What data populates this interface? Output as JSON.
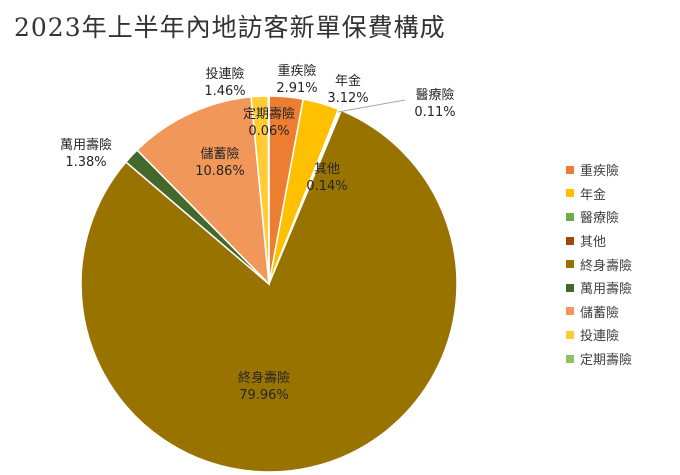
{
  "chart_data": {
    "type": "pie",
    "title": "2023年上半年內地訪客新單保費構成",
    "slices": [
      {
        "name": "重疾險",
        "value": 2.91,
        "label": "2.91%",
        "color": "#ED7D31"
      },
      {
        "name": "年金",
        "value": 3.12,
        "label": "3.12%",
        "color": "#FFC000"
      },
      {
        "name": "醫療險",
        "value": 0.11,
        "label": "0.11%",
        "color": "#70AD47"
      },
      {
        "name": "其他",
        "value": 0.14,
        "label": "0.14%",
        "color": "#9E480E"
      },
      {
        "name": "終身壽險",
        "value": 79.96,
        "label": "79.96%",
        "color": "#997300"
      },
      {
        "name": "萬用壽險",
        "value": 1.38,
        "label": "1.38%",
        "color": "#43682B"
      },
      {
        "name": "儲蓄險",
        "value": 10.86,
        "label": "10.86%",
        "color": "#F1975A"
      },
      {
        "name": "投連險",
        "value": 1.46,
        "label": "1.46%",
        "color": "#FFCD33"
      },
      {
        "name": "定期壽險",
        "value": 0.06,
        "label": "0.06%",
        "color": "#8CC168"
      }
    ],
    "legend": {
      "position": "right"
    }
  }
}
